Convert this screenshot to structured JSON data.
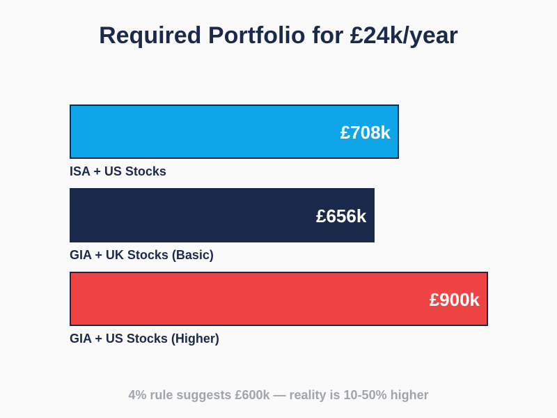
{
  "chart_data": {
    "type": "bar",
    "orientation": "horizontal",
    "title": "Required Portfolio for £24k/year",
    "categories": [
      "ISA + US Stocks",
      "GIA + UK Stocks (Basic)",
      "GIA + US Stocks (Higher)"
    ],
    "values": [
      708,
      656,
      900
    ],
    "value_labels": [
      "£708k",
      "£656k",
      "£900k"
    ],
    "colors": [
      "#0ea5e9",
      "#1b2a4a",
      "#ef4444"
    ],
    "unit": "£k",
    "xlim": [
      0,
      900
    ],
    "annotation": "4% rule suggests £600k — reality is 10-50% higher"
  }
}
